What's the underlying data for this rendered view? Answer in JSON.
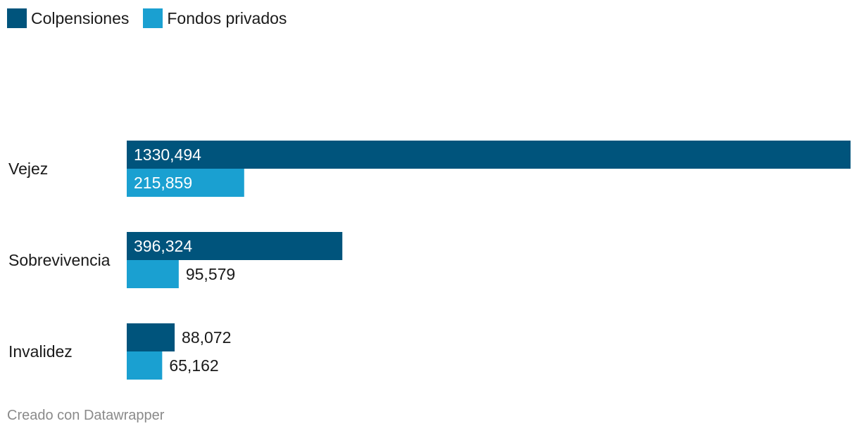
{
  "colors": {
    "colpensiones": "#00547c",
    "fondos_privados": "#1aa0d1"
  },
  "legend": [
    {
      "label": "Colpensiones",
      "color": "#00547c"
    },
    {
      "label": "Fondos privados",
      "color": "#1aa0d1"
    }
  ],
  "footer": "Creado con Datawrapper",
  "chart_data": {
    "type": "bar",
    "orientation": "horizontal",
    "categories": [
      "Vejez",
      "Sobrevivencia",
      "Invalidez"
    ],
    "series": [
      {
        "name": "Colpensiones",
        "values": [
          1330.494,
          396.324,
          88.072
        ],
        "labels": [
          "1330,494",
          "396,324",
          "88,072"
        ]
      },
      {
        "name": "Fondos privados",
        "values": [
          215.859,
          95.579,
          65.162
        ],
        "labels": [
          "215,859",
          "95,579",
          "65,162"
        ]
      }
    ],
    "legend_position": "top-left",
    "grid": false,
    "xlim": [
      0,
      1330.494
    ]
  }
}
